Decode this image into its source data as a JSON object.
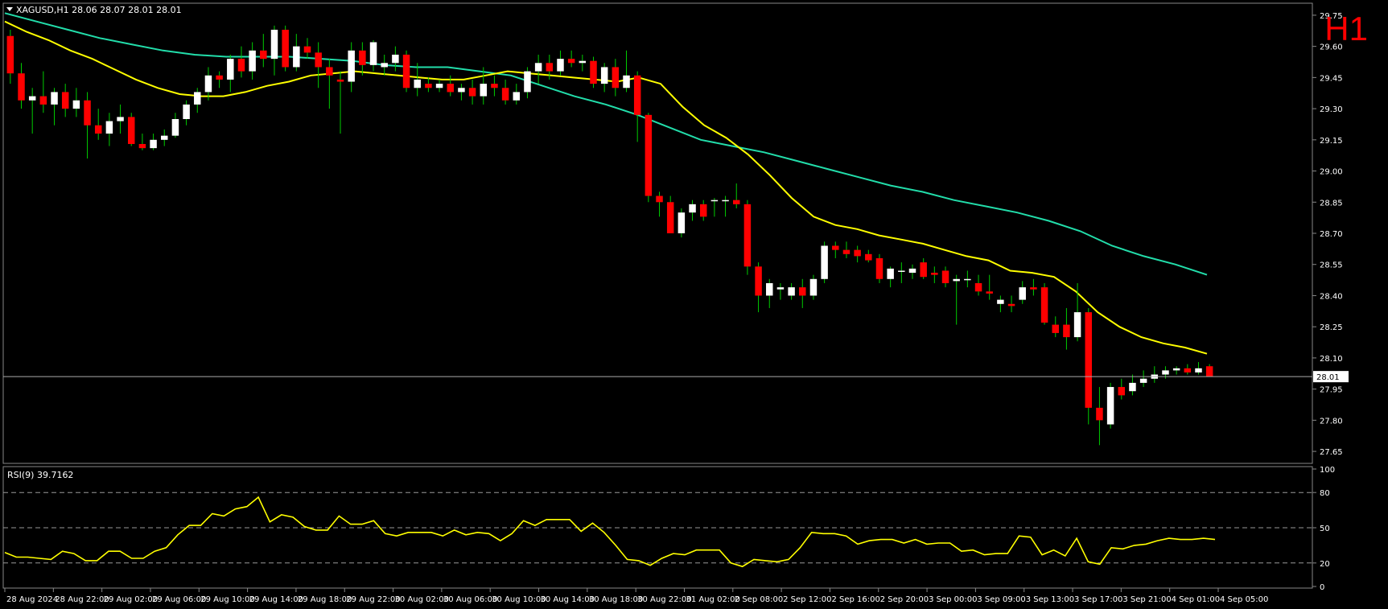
{
  "window": {
    "header": "XAGUSD,H1  28.06 28.07 28.01 28.01",
    "timeframe_badge": "H1",
    "current_price_label": "28.01"
  },
  "colors": {
    "background": "#000000",
    "bull_candle": "#ffffff",
    "bear_candle": "#ff0000",
    "wick": "#00cc00",
    "fast_ma": "#ffff00",
    "slow_ma": "#22ddaa",
    "rsi_line": "#ffff00",
    "badge": "#ff0000"
  },
  "chart_data": [
    {
      "type": "candlestick",
      "title": "XAGUSD,H1",
      "ohlc_readout": "28.06 28.07 28.01 28.01",
      "ylim": [
        27.6,
        29.8
      ],
      "y_ticks": [
        "29.75",
        "29.60",
        "29.45",
        "29.30",
        "29.15",
        "29.00",
        "28.85",
        "28.70",
        "28.55",
        "28.40",
        "28.25",
        "28.10",
        "27.95",
        "27.80",
        "27.65"
      ],
      "current_price": 28.01,
      "x_ticks": [
        "28 Aug 2024",
        "28 Aug 22:00",
        "29 Aug 02:00",
        "29 Aug 06:00",
        "29 Aug 10:00",
        "29 Aug 14:00",
        "29 Aug 18:00",
        "29 Aug 22:00",
        "30 Aug 02:00",
        "30 Aug 06:00",
        "30 Aug 10:00",
        "30 Aug 14:00",
        "30 Aug 18:00",
        "30 Aug 22:00",
        "31 Aug 02:00",
        "2 Sep 08:00",
        "2 Sep 12:00",
        "2 Sep 16:00",
        "2 Sep 20:00",
        "3 Sep 00:00",
        "3 Sep 09:00",
        "3 Sep 13:00",
        "3 Sep 17:00",
        "3 Sep 21:00",
        "4 Sep 01:00",
        "4 Sep 05:00"
      ],
      "candles": [
        [
          29.65,
          29.68,
          29.42,
          29.47
        ],
        [
          29.47,
          29.52,
          29.3,
          29.34
        ],
        [
          29.34,
          29.4,
          29.18,
          29.36
        ],
        [
          29.36,
          29.48,
          29.28,
          29.32
        ],
        [
          29.32,
          29.4,
          29.22,
          29.38
        ],
        [
          29.38,
          29.42,
          29.26,
          29.3
        ],
        [
          29.3,
          29.4,
          29.26,
          29.34
        ],
        [
          29.34,
          29.38,
          29.06,
          29.22
        ],
        [
          29.22,
          29.3,
          29.15,
          29.18
        ],
        [
          29.18,
          29.28,
          29.12,
          29.24
        ],
        [
          29.24,
          29.32,
          29.18,
          29.26
        ],
        [
          29.26,
          29.28,
          29.12,
          29.13
        ],
        [
          29.13,
          29.18,
          29.1,
          29.11
        ],
        [
          29.11,
          29.18,
          29.1,
          29.15
        ],
        [
          29.15,
          29.2,
          29.12,
          29.17
        ],
        [
          29.17,
          29.28,
          29.16,
          29.25
        ],
        [
          29.25,
          29.34,
          29.22,
          29.32
        ],
        [
          29.32,
          29.4,
          29.28,
          29.38
        ],
        [
          29.38,
          29.5,
          29.34,
          29.46
        ],
        [
          29.46,
          29.48,
          29.4,
          29.44
        ],
        [
          29.44,
          29.56,
          29.38,
          29.54
        ],
        [
          29.54,
          29.6,
          29.45,
          29.48
        ],
        [
          29.48,
          29.62,
          29.44,
          29.58
        ],
        [
          29.58,
          29.66,
          29.5,
          29.54
        ],
        [
          29.54,
          29.7,
          29.46,
          29.68
        ],
        [
          29.68,
          29.7,
          29.48,
          29.5
        ],
        [
          29.5,
          29.66,
          29.48,
          29.6
        ],
        [
          29.6,
          29.64,
          29.54,
          29.57
        ],
        [
          29.57,
          29.62,
          29.4,
          29.5
        ],
        [
          29.5,
          29.54,
          29.3,
          29.46
        ],
        [
          29.44,
          29.48,
          29.18,
          29.43
        ],
        [
          29.43,
          29.62,
          29.38,
          29.58
        ],
        [
          29.58,
          29.62,
          29.46,
          29.51
        ],
        [
          29.51,
          29.63,
          29.48,
          29.62
        ],
        [
          29.5,
          29.56,
          29.46,
          29.52
        ],
        [
          29.52,
          29.6,
          29.48,
          29.56
        ],
        [
          29.56,
          29.58,
          29.38,
          29.4
        ],
        [
          29.4,
          29.52,
          29.36,
          29.44
        ],
        [
          29.42,
          29.45,
          29.38,
          29.4
        ],
        [
          29.4,
          29.44,
          29.38,
          29.42
        ],
        [
          29.42,
          29.46,
          29.36,
          29.38
        ],
        [
          29.38,
          29.42,
          29.34,
          29.4
        ],
        [
          29.4,
          29.44,
          29.32,
          29.36
        ],
        [
          29.36,
          29.5,
          29.32,
          29.42
        ],
        [
          29.42,
          29.46,
          29.36,
          29.4
        ],
        [
          29.4,
          29.44,
          29.32,
          29.34
        ],
        [
          29.34,
          29.42,
          29.32,
          29.38
        ],
        [
          29.38,
          29.5,
          29.35,
          29.48
        ],
        [
          29.48,
          29.56,
          29.42,
          29.52
        ],
        [
          29.52,
          29.56,
          29.44,
          29.48
        ],
        [
          29.48,
          29.58,
          29.46,
          29.54
        ],
        [
          29.54,
          29.58,
          29.5,
          29.52
        ],
        [
          29.52,
          29.56,
          29.48,
          29.53
        ],
        [
          29.53,
          29.55,
          29.4,
          29.42
        ],
        [
          29.42,
          29.52,
          29.38,
          29.5
        ],
        [
          29.5,
          29.54,
          29.36,
          29.4
        ],
        [
          29.4,
          29.58,
          29.38,
          29.46
        ],
        [
          29.46,
          29.48,
          29.14,
          29.27
        ],
        [
          29.27,
          29.28,
          28.85,
          28.88
        ],
        [
          28.88,
          28.9,
          28.78,
          28.85
        ],
        [
          28.85,
          28.88,
          28.7,
          28.7
        ],
        [
          28.7,
          28.82,
          28.68,
          28.8
        ],
        [
          28.8,
          28.86,
          28.76,
          28.84
        ],
        [
          28.84,
          28.86,
          28.76,
          28.78
        ],
        [
          28.86,
          28.87,
          28.78,
          28.86
        ],
        [
          28.86,
          28.88,
          28.78,
          28.86
        ],
        [
          28.86,
          28.94,
          28.82,
          28.84
        ],
        [
          28.84,
          28.86,
          28.5,
          28.54
        ],
        [
          28.54,
          28.56,
          28.32,
          28.4
        ],
        [
          28.4,
          28.48,
          28.34,
          28.46
        ],
        [
          28.43,
          28.46,
          28.38,
          28.44
        ],
        [
          28.4,
          28.46,
          28.38,
          28.44
        ],
        [
          28.44,
          28.48,
          28.34,
          28.4
        ],
        [
          28.4,
          28.5,
          28.38,
          28.48
        ],
        [
          28.48,
          28.66,
          28.46,
          28.64
        ],
        [
          28.64,
          28.66,
          28.58,
          28.62
        ],
        [
          28.62,
          28.66,
          28.58,
          28.6
        ],
        [
          28.62,
          28.64,
          28.56,
          28.59
        ],
        [
          28.6,
          28.62,
          28.56,
          28.57
        ],
        [
          28.58,
          28.6,
          28.46,
          28.48
        ],
        [
          28.48,
          28.54,
          28.44,
          28.53
        ],
        [
          28.52,
          28.56,
          28.46,
          28.52
        ],
        [
          28.51,
          28.55,
          28.48,
          28.53
        ],
        [
          28.56,
          28.58,
          28.48,
          28.49
        ],
        [
          28.51,
          28.54,
          28.46,
          28.5
        ],
        [
          28.52,
          28.54,
          28.44,
          28.46
        ],
        [
          28.47,
          28.5,
          28.26,
          28.48
        ],
        [
          28.48,
          28.52,
          28.44,
          28.48
        ],
        [
          28.46,
          28.5,
          28.4,
          28.42
        ],
        [
          28.42,
          28.5,
          28.38,
          28.41
        ],
        [
          28.36,
          28.4,
          28.32,
          28.38
        ],
        [
          28.36,
          28.4,
          28.32,
          28.35
        ],
        [
          28.38,
          28.47,
          28.36,
          28.44
        ],
        [
          28.44,
          28.48,
          28.4,
          28.43
        ],
        [
          28.44,
          28.46,
          28.26,
          28.27
        ],
        [
          28.26,
          28.3,
          28.2,
          28.22
        ],
        [
          28.26,
          28.34,
          28.14,
          28.2
        ],
        [
          28.2,
          28.46,
          28.18,
          28.32
        ],
        [
          28.32,
          28.34,
          27.78,
          27.86
        ],
        [
          27.86,
          27.96,
          27.68,
          27.8
        ],
        [
          27.78,
          27.98,
          27.76,
          27.96
        ],
        [
          27.96,
          28.0,
          27.9,
          27.92
        ],
        [
          27.94,
          28.02,
          27.92,
          27.98
        ],
        [
          27.98,
          28.04,
          27.96,
          28.0
        ],
        [
          28.0,
          28.06,
          27.98,
          28.02
        ],
        [
          28.02,
          28.06,
          28.0,
          28.04
        ],
        [
          28.04,
          28.06,
          28.02,
          28.05
        ],
        [
          28.05,
          28.07,
          28.02,
          28.03
        ],
        [
          28.03,
          28.08,
          28.02,
          28.05
        ],
        [
          28.06,
          28.07,
          28.01,
          28.01
        ]
      ],
      "fast_ma": [
        29.72,
        29.67,
        29.63,
        29.58,
        29.54,
        29.49,
        29.44,
        29.4,
        29.37,
        29.36,
        29.36,
        29.38,
        29.41,
        29.43,
        29.46,
        29.47,
        29.48,
        29.47,
        29.46,
        29.45,
        29.44,
        29.44,
        29.46,
        29.48,
        29.47,
        29.46,
        29.45,
        29.44,
        29.43,
        29.45,
        29.42,
        29.31,
        29.22,
        29.16,
        29.08,
        28.98,
        28.87,
        28.78,
        28.74,
        28.72,
        28.69,
        28.67,
        28.65,
        28.62,
        28.59,
        28.57,
        28.52,
        28.51,
        28.49,
        28.42,
        28.32,
        28.25,
        28.2,
        28.17,
        28.15,
        28.12
      ],
      "slow_ma": [
        29.76,
        29.72,
        29.68,
        29.64,
        29.61,
        29.58,
        29.56,
        29.55,
        29.55,
        29.55,
        29.54,
        29.53,
        29.51,
        29.5,
        29.5,
        29.48,
        29.46,
        29.41,
        29.36,
        29.32,
        29.27,
        29.21,
        29.15,
        29.12,
        29.09,
        29.05,
        29.01,
        28.97,
        28.93,
        28.9,
        28.86,
        28.83,
        28.8,
        28.76,
        28.71,
        28.64,
        28.59,
        28.55,
        28.5
      ]
    },
    {
      "type": "line",
      "title": "RSI(9) 39.7162",
      "ylim": [
        0,
        100
      ],
      "y_ticks": [
        100,
        80,
        50,
        20,
        0
      ],
      "levels": [
        80,
        50,
        20
      ],
      "values": [
        29,
        25,
        25,
        24,
        23,
        30,
        28,
        22,
        22,
        30,
        30,
        24,
        24,
        30,
        33,
        44,
        52,
        52,
        62,
        60,
        66,
        68,
        76,
        55,
        61,
        59,
        51,
        48,
        48,
        60,
        53,
        53,
        56,
        45,
        43,
        46,
        46,
        46,
        43,
        48,
        44,
        46,
        45,
        39,
        45,
        56,
        52,
        57,
        57,
        57,
        47,
        54,
        46,
        35,
        23,
        22,
        18,
        24,
        28,
        27,
        31,
        31,
        31,
        20,
        17,
        23,
        22,
        21,
        23,
        33,
        46,
        45,
        45,
        43,
        36,
        39,
        40,
        40,
        37,
        40,
        36,
        37,
        37,
        30,
        31,
        27,
        28,
        28,
        43,
        42,
        27,
        31,
        26,
        41,
        21,
        19,
        33,
        32,
        35,
        36,
        39,
        41,
        40,
        40,
        41,
        40
      ]
    }
  ]
}
